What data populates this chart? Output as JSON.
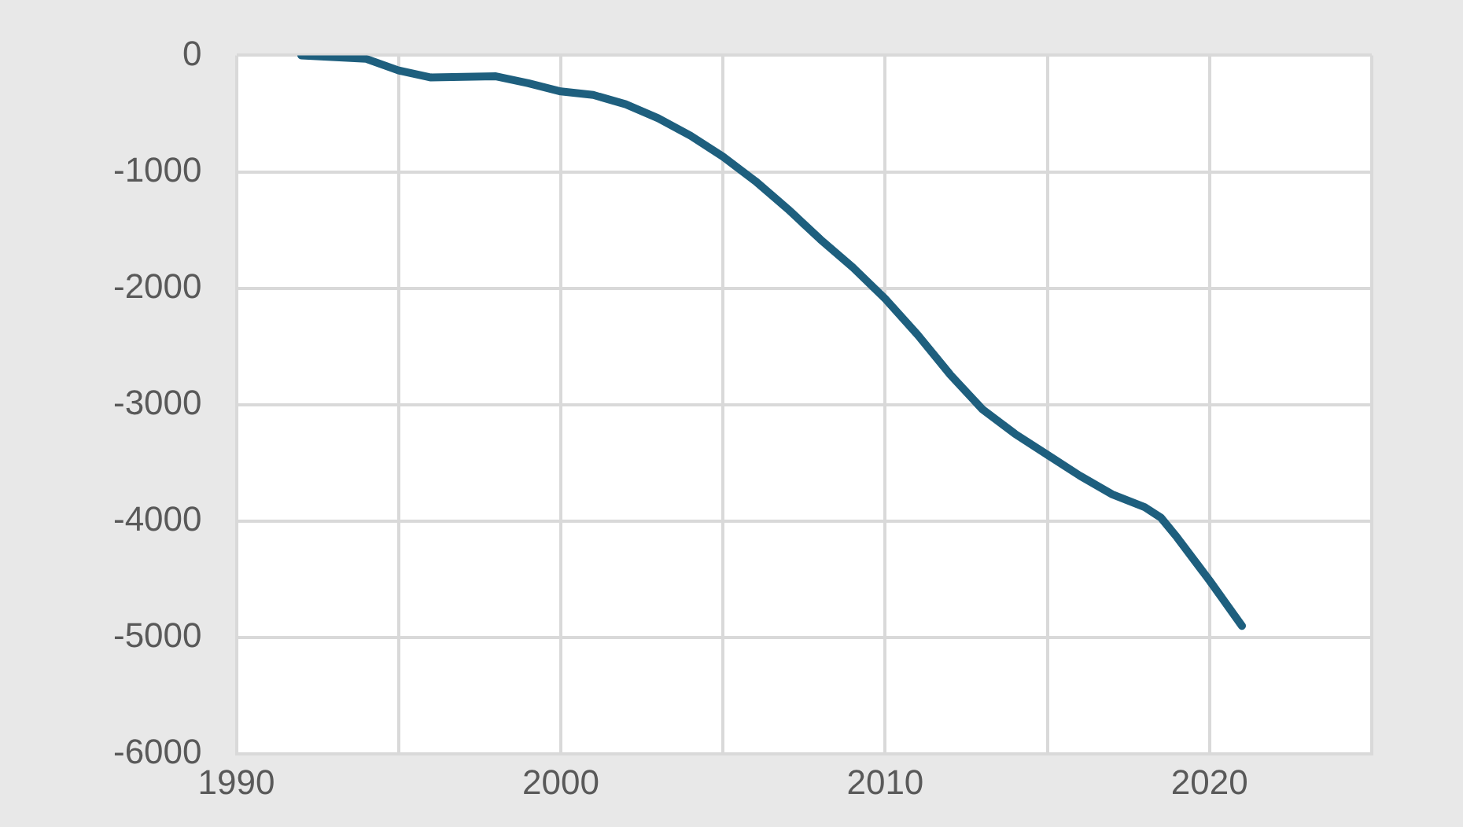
{
  "chart_data": {
    "type": "line",
    "x": [
      1992,
      1994,
      1995,
      1996,
      1998,
      1999,
      2000,
      2001,
      2002,
      2003,
      2004,
      2005,
      2006,
      2007,
      2008,
      2009,
      2010,
      2011,
      2012,
      2013,
      2014,
      2015,
      2016,
      2017,
      2018,
      2018.5,
      2019,
      2020,
      2021
    ],
    "series": [
      {
        "color": "#1e5f7e",
        "values": [
          0,
          -30,
          -130,
          -190,
          -180,
          -240,
          -310,
          -340,
          -420,
          -540,
          -690,
          -870,
          -1080,
          -1320,
          -1580,
          -1820,
          -2090,
          -2400,
          -2740,
          -3040,
          -3250,
          -3430,
          -3610,
          -3770,
          -3880,
          -3970,
          -4140,
          -4510,
          -4900
        ]
      }
    ],
    "xlim": [
      1990,
      2025
    ],
    "xticks": [
      1990,
      {
        "value": 1995,
        "label": null
      },
      2000,
      {
        "value": 2005,
        "label": null
      },
      2010,
      {
        "value": 2015,
        "label": null
      },
      2020,
      {
        "value": 2025,
        "label": null
      }
    ],
    "ylim": [
      -6000,
      0
    ],
    "yticks": [
      -6000,
      -5000,
      -4000,
      -3000,
      -2000,
      -1000,
      0
    ],
    "grid": true,
    "legend": false,
    "marker": "none",
    "line_style": "solid"
  }
}
